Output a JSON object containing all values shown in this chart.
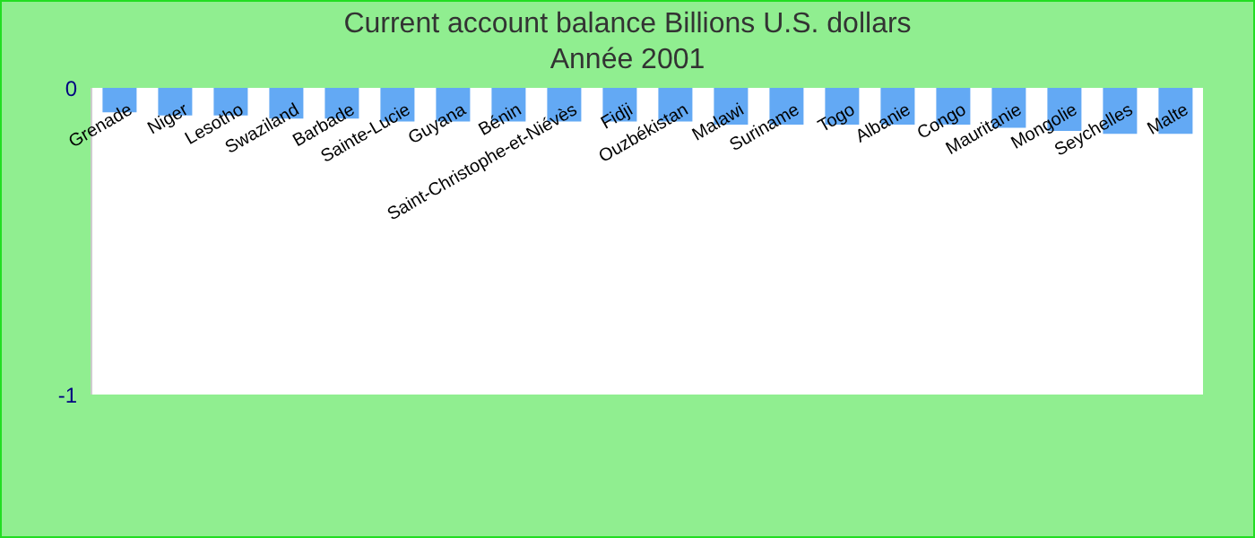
{
  "chart_data": {
    "type": "bar",
    "title": "Current account balance Billions U.S. dollars",
    "subtitle": "Année 2001",
    "categories": [
      "Grenade",
      "Niger",
      "Lesotho",
      "Swaziland",
      "Barbade",
      "Sainte-Lucie",
      "Guyana",
      "Bénin",
      "Saint-Christophe-et-Niévès",
      "Fidji",
      "Ouzbékistan",
      "Malawi",
      "Suriname",
      "Togo",
      "Albanie",
      "Congo",
      "Mauritanie",
      "Mongolie",
      "Seychelles",
      "Malte"
    ],
    "values": [
      -0.08,
      -0.09,
      -0.09,
      -0.1,
      -0.1,
      -0.11,
      -0.11,
      -0.11,
      -0.11,
      -0.11,
      -0.11,
      -0.12,
      -0.12,
      -0.12,
      -0.12,
      -0.12,
      -0.13,
      -0.14,
      -0.15,
      -0.15
    ],
    "color": "#63a9f4",
    "ylim": [
      -1,
      0
    ],
    "yticks": [
      -1,
      0
    ],
    "grid": false,
    "legend": false
  }
}
